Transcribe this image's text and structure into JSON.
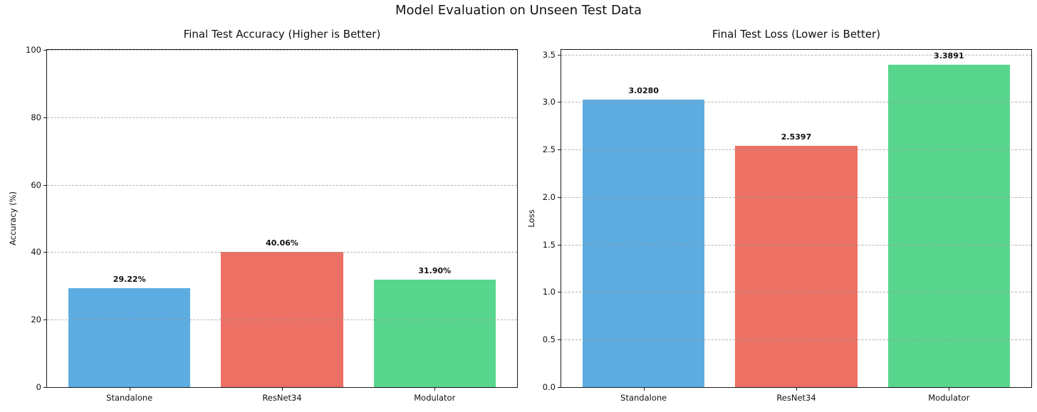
{
  "figure": {
    "title": "Model Evaluation on Unseen Test Data",
    "background": "#ffffff",
    "text_color": "#111111",
    "grid_color": "#b0b0b0"
  },
  "chart_data": [
    {
      "type": "bar",
      "title": "Final Test Accuracy (Higher is Better)",
      "categories": [
        "Standalone",
        "ResNet34",
        "Modulator"
      ],
      "values": [
        29.22,
        40.06,
        31.9
      ],
      "bar_labels": [
        "29.22%",
        "40.06%",
        "31.90%"
      ],
      "bar_colors": [
        "#5DADE2",
        "#EC7063",
        "#58D68D"
      ],
      "xlabel": "",
      "ylabel": "Accuracy (%)",
      "ylim": [
        0,
        100
      ],
      "yticks": [
        0,
        20,
        40,
        60,
        80,
        100
      ],
      "ytick_labels": [
        "0",
        "20",
        "40",
        "60",
        "80",
        "100"
      ],
      "grid": "y-axis dashed",
      "legend": null
    },
    {
      "type": "bar",
      "title": "Final Test Loss (Lower is Better)",
      "categories": [
        "Standalone",
        "ResNet34",
        "Modulator"
      ],
      "values": [
        3.028,
        2.5397,
        3.3891
      ],
      "bar_labels": [
        "3.0280",
        "2.5397",
        "3.3891"
      ],
      "bar_colors": [
        "#5DADE2",
        "#EC7063",
        "#58D68D"
      ],
      "xlabel": "",
      "ylabel": "Loss",
      "ylim": [
        0,
        3.55
      ],
      "yticks": [
        0.0,
        0.5,
        1.0,
        1.5,
        2.0,
        2.5,
        3.0,
        3.5
      ],
      "ytick_labels": [
        "0.0",
        "0.5",
        "1.0",
        "1.5",
        "2.0",
        "2.5",
        "3.0",
        "3.5"
      ],
      "grid": "y-axis dashed",
      "legend": null
    }
  ]
}
